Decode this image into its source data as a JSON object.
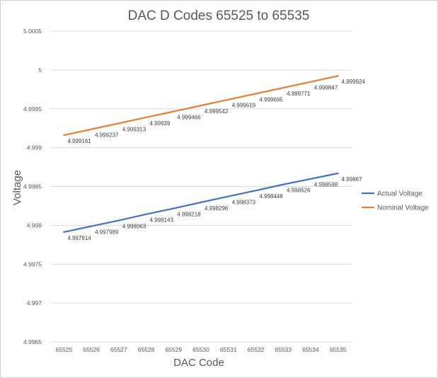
{
  "chart_data": {
    "type": "line",
    "title": "DAC D Codes 65525 to 65535",
    "xlabel": "DAC Code",
    "ylabel": "Voltage",
    "ylim": [
      4.9965,
      5.0005
    ],
    "yticks": [
      "4.9965",
      "4.997",
      "4.9975",
      "4.998",
      "4.9985",
      "4.999",
      "4.9995",
      "5",
      "5.0005"
    ],
    "categories": [
      "65525",
      "65526",
      "65527",
      "65528",
      "65529",
      "65530",
      "65531",
      "65532",
      "65533",
      "65534",
      "65535"
    ],
    "grid": true,
    "legend_position": "right",
    "series": [
      {
        "name": "Actual Voltage",
        "color": "#4472c4",
        "values": [
          4.997914,
          4.997989,
          4.998063,
          4.998143,
          4.998218,
          4.998296,
          4.998373,
          4.998448,
          4.998526,
          4.998598,
          4.99867
        ],
        "labels": [
          "4.997914",
          "4.997989",
          "4.998063",
          "4.998143",
          "4.998218",
          "4.998296",
          "4.998373",
          "4.998448",
          "4.998526",
          "4.998598",
          "4.99867"
        ]
      },
      {
        "name": "Nominal Voltage",
        "color": "#ed7d31",
        "values": [
          4.999161,
          4.999237,
          4.999313,
          4.99939,
          4.999466,
          4.999542,
          4.999619,
          4.999695,
          4.999771,
          4.999847,
          4.999924
        ],
        "labels": [
          "4.999161",
          "4.999237",
          "4.999313",
          "4.99939",
          "4.999466",
          "4.999542",
          "4.999619",
          "4.999695",
          "4.999771",
          "4.999847",
          "4.999924"
        ]
      }
    ]
  }
}
